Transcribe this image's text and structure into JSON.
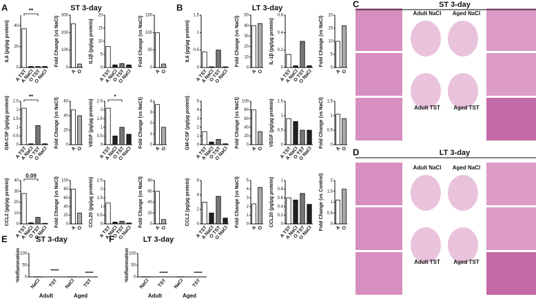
{
  "panels": [
    {
      "letter": "A",
      "title": "ST 3-day"
    },
    {
      "letter": "B",
      "title": "LT 3-day"
    },
    {
      "letter": "C",
      "title": "ST 3-day"
    },
    {
      "letter": "D",
      "title": "LT 3-day"
    },
    {
      "letter": "E",
      "title": "ST 3-day"
    },
    {
      "letter": "F",
      "title": "LT 3-day"
    }
  ],
  "histology": [
    {
      "labels": [
        "Adult NaCl",
        "Aged NaCl",
        "Adult TST",
        "Aged TST"
      ]
    },
    {
      "labels": [
        "Adult NaCl",
        "Aged NaCl",
        "Adult TST",
        "Aged TST"
      ]
    }
  ],
  "chart_data": [
    {
      "type": "bar",
      "ylabel": "IL6 (pg/µg protein)",
      "categories": [
        "A TST",
        "A NaCl",
        "O TST",
        "O NaCl"
      ],
      "values": [
        37,
        1,
        1,
        1
      ],
      "colors": [
        "#ffffff",
        "#222222",
        "#777777",
        "#222222"
      ],
      "ylim": [
        0,
        50
      ],
      "yticks": [
        0,
        20,
        40
      ],
      "annotation": "**"
    },
    {
      "type": "bar",
      "ylabel": "Fold Change (vs NaCl)",
      "categories": [
        "A",
        "O"
      ],
      "values": [
        250,
        20
      ],
      "colors": [
        "#ffffff",
        "#aaaaaa"
      ],
      "ylim": [
        0,
        300
      ],
      "yticks": [
        0,
        100,
        200,
        300
      ]
    },
    {
      "type": "bar",
      "ylabel": "IL1β (pg/µg protein)",
      "categories": [
        "A TST",
        "A NaCl",
        "O TST",
        "O NaCl"
      ],
      "values": [
        8,
        1,
        1.5,
        1
      ],
      "colors": [
        "#ffffff",
        "#222222",
        "#777777",
        "#222222"
      ],
      "ylim": [
        0,
        20
      ],
      "yticks": [
        0,
        5,
        10,
        15,
        20
      ]
    },
    {
      "type": "bar",
      "ylabel": "Fold Change (vs NaCl)",
      "categories": [
        "A",
        "O"
      ],
      "values": [
        100,
        10
      ],
      "colors": [
        "#ffffff",
        "#aaaaaa"
      ],
      "ylim": [
        0,
        150
      ],
      "yticks": [
        0,
        50,
        100,
        150
      ]
    },
    {
      "type": "bar",
      "ylabel": "GM-CSF (pg/µg protein)",
      "categories": [
        "A TST",
        "A NaCl",
        "O TST",
        "O NaCl"
      ],
      "values": [
        2.1,
        0.05,
        1.1,
        0.05
      ],
      "colors": [
        "#ffffff",
        "#222222",
        "#777777",
        "#222222"
      ],
      "ylim": [
        0,
        2.5
      ],
      "yticks": [
        0,
        0.5,
        1,
        1.5,
        2,
        2.5
      ],
      "annotation": "**"
    },
    {
      "type": "bar",
      "ylabel": "Fold Change (vs NaCl)",
      "categories": [
        "A",
        "O"
      ],
      "values": [
        48,
        40
      ],
      "colors": [
        "#ffffff",
        "#aaaaaa"
      ],
      "ylim": [
        0,
        60
      ],
      "yticks": [
        0,
        20,
        40,
        60
      ]
    },
    {
      "type": "bar",
      "ylabel": "VEGF (pg/µg protein)",
      "categories": [
        "A TST",
        "A NaCl",
        "O TST",
        "O NaCl"
      ],
      "values": [
        2.1,
        0.5,
        1,
        0.6
      ],
      "colors": [
        "#ffffff",
        "#222222",
        "#777777",
        "#222222"
      ],
      "ylim": [
        0,
        2.5
      ],
      "yticks": [
        0,
        0.5,
        1,
        1.5,
        2,
        2.5
      ],
      "annotation": "*"
    },
    {
      "type": "bar",
      "ylabel": "Fold Change (vs NaCl)",
      "categories": [
        "A",
        "O"
      ],
      "values": [
        3.7,
        1.6
      ],
      "colors": [
        "#ffffff",
        "#aaaaaa"
      ],
      "ylim": [
        0,
        4
      ],
      "yticks": [
        0,
        1,
        2,
        3,
        4
      ]
    },
    {
      "type": "bar",
      "ylabel": "CCL2 (pg/µg protein)",
      "categories": [
        "A TST",
        "A NaCl",
        "O TST",
        "O NaCl"
      ],
      "values": [
        28,
        1,
        6,
        0.5
      ],
      "colors": [
        "#ffffff",
        "#222222",
        "#777777",
        "#222222"
      ],
      "ylim": [
        0,
        40
      ],
      "yticks": [
        0,
        10,
        20,
        30,
        40
      ],
      "annotation": "0.09"
    },
    {
      "type": "bar",
      "ylabel": "Fold Change (vs NaCl)",
      "categories": [
        "A",
        "O"
      ],
      "values": [
        80,
        25
      ],
      "colors": [
        "#ffffff",
        "#aaaaaa"
      ],
      "ylim": [
        0,
        100
      ],
      "yticks": [
        0,
        20,
        40,
        60,
        80,
        100
      ]
    },
    {
      "type": "bar",
      "ylabel": "CCL20 (pg/µg protein)",
      "categories": [
        "A TST",
        "A NaCl",
        "O TST",
        "O NaCl"
      ],
      "values": [
        1.2,
        0.1,
        0.15,
        0.05
      ],
      "colors": [
        "#ffffff",
        "#222222",
        "#777777",
        "#222222"
      ],
      "ylim": [
        0,
        2.5
      ],
      "yticks": [
        0,
        0.5,
        1,
        1.5,
        2,
        2.5
      ]
    },
    {
      "type": "bar",
      "ylabel": "Fold Change (vs NaCl)",
      "categories": [
        "A",
        "O"
      ],
      "values": [
        60,
        8
      ],
      "colors": [
        "#ffffff",
        "#aaaaaa"
      ],
      "ylim": [
        0,
        80
      ],
      "yticks": [
        0,
        20,
        40,
        60,
        80
      ]
    },
    {
      "type": "bar",
      "ylabel": "IL6 (pg/µg protein)",
      "categories": [
        "A TST",
        "A NaCl",
        "O TST",
        "O NaCl"
      ],
      "values": [
        0.45,
        0.02,
        0.5,
        0.02
      ],
      "colors": [
        "#ffffff",
        "#222222",
        "#777777",
        "#222222"
      ],
      "ylim": [
        0,
        1.5
      ],
      "yticks": [
        0,
        0.5,
        1,
        1.5
      ]
    },
    {
      "type": "bar",
      "ylabel": "Fold Change (vs NaCl)",
      "categories": [
        "A",
        "O"
      ],
      "values": [
        40,
        42
      ],
      "colors": [
        "#ffffff",
        "#aaaaaa"
      ],
      "ylim": [
        0,
        50
      ],
      "yticks": [
        0,
        10,
        20,
        30,
        40,
        50
      ]
    },
    {
      "type": "bar",
      "ylabel": "IL-1β (pg/µg protein)",
      "categories": [
        "A TST",
        "A NaCl",
        "O TST",
        "O NaCl"
      ],
      "values": [
        0.15,
        0.02,
        0.3,
        0.02
      ],
      "colors": [
        "#ffffff",
        "#222222",
        "#777777",
        "#222222"
      ],
      "ylim": [
        0,
        0.6
      ],
      "yticks": [
        0,
        0.2,
        0.4,
        0.6
      ]
    },
    {
      "type": "bar",
      "ylabel": "Fold Change (vs NaCl)",
      "categories": [
        "A",
        "O"
      ],
      "values": [
        10,
        16
      ],
      "colors": [
        "#ffffff",
        "#aaaaaa"
      ],
      "ylim": [
        0,
        20
      ],
      "yticks": [
        0,
        5,
        10,
        15,
        20
      ]
    },
    {
      "type": "bar",
      "ylabel": "GM-CSF (pg/µg protein)",
      "categories": [
        "A TST",
        "A NaCl",
        "O TST",
        "O NaCl"
      ],
      "values": [
        1.5,
        0.3,
        0.6,
        0.1
      ],
      "colors": [
        "#ffffff",
        "#222222",
        "#777777",
        "#222222"
      ],
      "ylim": [
        0,
        5
      ],
      "yticks": [
        0,
        1,
        2,
        3,
        4,
        5
      ]
    },
    {
      "type": "bar",
      "ylabel": "Fold Change (vs NaCl)",
      "categories": [
        "A",
        "O"
      ],
      "values": [
        80,
        30
      ],
      "colors": [
        "#ffffff",
        "#aaaaaa"
      ],
      "ylim": [
        0,
        100
      ],
      "yticks": [
        0,
        20,
        40,
        60,
        80,
        100
      ]
    },
    {
      "type": "bar",
      "ylabel": "VEGF (pg/µg protein)",
      "categories": [
        "A TST",
        "A NaCl",
        "O TST",
        "O NaCl"
      ],
      "values": [
        0.9,
        0.8,
        0.5,
        0.5
      ],
      "colors": [
        "#ffffff",
        "#222222",
        "#777777",
        "#222222"
      ],
      "ylim": [
        0,
        1.5
      ],
      "yticks": [
        0,
        0.5,
        1,
        1.5
      ]
    },
    {
      "type": "bar",
      "ylabel": "Fold Change (vs NaCl)",
      "categories": [
        "A",
        "O"
      ],
      "values": [
        1.05,
        0.9
      ],
      "colors": [
        "#ffffff",
        "#aaaaaa"
      ],
      "ylim": [
        0,
        1.5
      ],
      "yticks": [
        0,
        0.5,
        1,
        1.5
      ]
    },
    {
      "type": "bar",
      "ylabel": "CCL2 (pg/µg protein)",
      "categories": [
        "A TST",
        "A NaCl",
        "O TST",
        "O NaCl"
      ],
      "values": [
        3,
        1.5,
        3.8,
        0.8
      ],
      "colors": [
        "#ffffff",
        "#222222",
        "#777777",
        "#222222"
      ],
      "ylim": [
        0,
        6
      ],
      "yticks": [
        0,
        2,
        4,
        6
      ]
    },
    {
      "type": "bar",
      "ylabel": "Fold Change (vs NaCl)",
      "categories": [
        "A",
        "O"
      ],
      "values": [
        2.3,
        4.2
      ],
      "colors": [
        "#ffffff",
        "#aaaaaa"
      ],
      "ylim": [
        0,
        5
      ],
      "yticks": [
        0,
        1,
        2,
        3,
        4,
        5
      ]
    },
    {
      "type": "bar",
      "ylabel": "CCL20 (pg/µg protein)",
      "categories": [
        "A TST",
        "A NaCl",
        "O TST",
        "O NaCl"
      ],
      "values": [
        0.6,
        0.55,
        0.7,
        0.45
      ],
      "colors": [
        "#ffffff",
        "#222222",
        "#777777",
        "#222222"
      ],
      "ylim": [
        0,
        1
      ],
      "yticks": [
        0,
        0.2,
        0.4,
        0.6,
        0.8,
        1
      ]
    },
    {
      "type": "bar",
      "ylabel": "Fold Change (vs Control)",
      "categories": [
        "A",
        "O"
      ],
      "values": [
        1.1,
        1.6
      ],
      "colors": [
        "#ffffff",
        "#aaaaaa"
      ],
      "ylim": [
        0,
        2
      ],
      "yticks": [
        0,
        0.5,
        1,
        1.5,
        2
      ]
    },
    {
      "type": "dot",
      "ylabel": "%Inflammation",
      "categories": [
        "NaCl",
        "TST",
        "NaCl",
        "TST"
      ],
      "groups": [
        "Adult",
        "Aged"
      ],
      "values": [
        0,
        30,
        0,
        20
      ],
      "ylim": [
        0,
        100
      ],
      "yticks": [
        0,
        50,
        100
      ]
    },
    {
      "type": "dot",
      "ylabel": "%Inflammation",
      "categories": [
        "NaCl",
        "TST",
        "NaCl",
        "TST"
      ],
      "groups": [
        "Adult",
        "Aged"
      ],
      "values": [
        0,
        20,
        0,
        20
      ],
      "ylim": [
        0,
        100
      ],
      "yticks": [
        0,
        50,
        100
      ]
    }
  ]
}
